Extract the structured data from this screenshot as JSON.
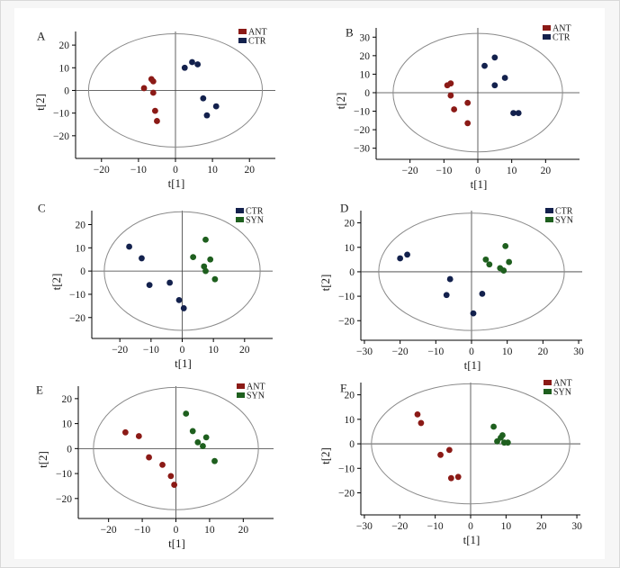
{
  "colors": {
    "ANT": "#8b1a16",
    "CTR": "#13214d",
    "SYN": "#1e5f1e",
    "ellipse": "#8a8a8a",
    "axis": "#000000"
  },
  "chart_data": [
    {
      "panel_label": "A",
      "type": "scatter",
      "xlabel": "t[1]",
      "ylabel": "t[2]",
      "xlim": [
        -27,
        27
      ],
      "ylim": [
        -30,
        26
      ],
      "xticks": [
        -20,
        -10,
        0,
        10,
        20
      ],
      "yticks": [
        20,
        10,
        0,
        -10,
        -20
      ],
      "ellipse": {
        "rx": 23.5,
        "ry": 25
      },
      "legend": "top-right",
      "series": [
        {
          "name": "ANT",
          "points": [
            [
              -6.5,
              5
            ],
            [
              -6,
              4
            ],
            [
              -8.5,
              1
            ],
            [
              -6,
              -1
            ],
            [
              -5.5,
              -9
            ],
            [
              -5,
              -13.5
            ]
          ]
        },
        {
          "name": "CTR",
          "points": [
            [
              2.5,
              10
            ],
            [
              4.5,
              12.5
            ],
            [
              6,
              11.5
            ],
            [
              7.5,
              -3.5
            ],
            [
              11,
              -7
            ],
            [
              8.5,
              -11
            ]
          ]
        }
      ]
    },
    {
      "panel_label": "B",
      "type": "scatter",
      "xlabel": "t[1]",
      "ylabel": "t[2]",
      "xlim": [
        -30,
        30
      ],
      "ylim": [
        -36,
        35
      ],
      "xticks": [
        -20,
        -10,
        0,
        10,
        20
      ],
      "yticks": [
        30,
        20,
        10,
        0,
        -10,
        -20,
        -30
      ],
      "ellipse": {
        "rx": 25,
        "ry": 32
      },
      "legend": "top-right",
      "series": [
        {
          "name": "ANT",
          "points": [
            [
              -9,
              4
            ],
            [
              -8,
              5
            ],
            [
              -8,
              -1.5
            ],
            [
              -7,
              -9
            ],
            [
              -3,
              -5.5
            ],
            [
              -3,
              -16.5
            ]
          ]
        },
        {
          "name": "CTR",
          "points": [
            [
              2,
              14.5
            ],
            [
              5,
              19
            ],
            [
              8,
              8
            ],
            [
              5,
              4
            ],
            [
              10.5,
              -11
            ],
            [
              12,
              -11
            ]
          ]
        }
      ]
    },
    {
      "panel_label": "C",
      "type": "scatter",
      "xlabel": "t[1]",
      "ylabel": "t[2]",
      "xlim": [
        -29,
        29
      ],
      "ylim": [
        -29,
        26
      ],
      "xticks": [
        -20,
        -10,
        0,
        10,
        20
      ],
      "yticks": [
        20,
        10,
        0,
        -10,
        -20
      ],
      "ellipse": {
        "rx": 25,
        "ry": 25.5
      },
      "legend": "top-right",
      "series": [
        {
          "name": "CTR",
          "points": [
            [
              -17,
              10.5
            ],
            [
              -13,
              5.5
            ],
            [
              -10.5,
              -6
            ],
            [
              -4,
              -5
            ],
            [
              -1,
              -12.5
            ],
            [
              0.5,
              -16
            ]
          ]
        },
        {
          "name": "SYN",
          "points": [
            [
              3.5,
              6
            ],
            [
              7.5,
              13.5
            ],
            [
              9,
              5
            ],
            [
              7,
              2
            ],
            [
              7.5,
              0
            ],
            [
              10.5,
              -3.5
            ]
          ]
        }
      ]
    },
    {
      "panel_label": "D",
      "type": "scatter",
      "xlabel": "t[1]",
      "ylabel": "t[2]",
      "xlim": [
        -31,
        31
      ],
      "ylim": [
        -28,
        25
      ],
      "xticks": [
        -30,
        -20,
        -10,
        0,
        10,
        20,
        30
      ],
      "yticks": [
        20,
        10,
        0,
        -10,
        -20
      ],
      "ellipse": {
        "rx": 26,
        "ry": 24
      },
      "legend": "top-right",
      "series": [
        {
          "name": "CTR",
          "points": [
            [
              -20,
              5.5
            ],
            [
              -18,
              7
            ],
            [
              -6,
              -3
            ],
            [
              -7,
              -9.5
            ],
            [
              3,
              -9
            ],
            [
              0.5,
              -17
            ]
          ]
        },
        {
          "name": "SYN",
          "points": [
            [
              4,
              5
            ],
            [
              5,
              3
            ],
            [
              8,
              1.5
            ],
            [
              9,
              0.5
            ],
            [
              9.5,
              10.5
            ],
            [
              10.5,
              4
            ]
          ]
        }
      ]
    },
    {
      "panel_label": "E",
      "type": "scatter",
      "xlabel": "t[1]",
      "ylabel": "t[2]",
      "xlim": [
        -29,
        29
      ],
      "ylim": [
        -28,
        25
      ],
      "xticks": [
        -20,
        -10,
        0,
        10,
        20
      ],
      "yticks": [
        20,
        10,
        0,
        -10,
        -20
      ],
      "ellipse": {
        "rx": 24.5,
        "ry": 24.5
      },
      "legend": "top-right",
      "series": [
        {
          "name": "ANT",
          "points": [
            [
              -15,
              6.5
            ],
            [
              -11,
              5
            ],
            [
              -8,
              -3.5
            ],
            [
              -4,
              -6.5
            ],
            [
              -1.5,
              -11
            ],
            [
              -0.5,
              -14.5
            ]
          ]
        },
        {
          "name": "SYN",
          "points": [
            [
              3,
              14
            ],
            [
              5,
              7
            ],
            [
              6.5,
              2.5
            ],
            [
              8,
              1
            ],
            [
              9,
              4.5
            ],
            [
              11.5,
              -5
            ]
          ]
        }
      ]
    },
    {
      "panel_label": "F",
      "type": "scatter",
      "xlabel": "t[1]",
      "ylabel": "t[2]",
      "xlim": [
        -31,
        31
      ],
      "ylim": [
        -29,
        25
      ],
      "xticks": [
        -30,
        -20,
        -10,
        0,
        10,
        20,
        30
      ],
      "yticks": [
        20,
        10,
        0,
        -10,
        -20
      ],
      "ellipse": {
        "rx": 28,
        "ry": 24.5
      },
      "legend": "top-right",
      "series": [
        {
          "name": "ANT",
          "points": [
            [
              -15,
              12
            ],
            [
              -14,
              8.5
            ],
            [
              -8.5,
              -4.5
            ],
            [
              -6,
              -2.5
            ],
            [
              -5.5,
              -14
            ],
            [
              -3.5,
              -13.5
            ]
          ]
        },
        {
          "name": "SYN",
          "points": [
            [
              6.5,
              7
            ],
            [
              8.5,
              2.5
            ],
            [
              9,
              3.5
            ],
            [
              7.5,
              1
            ],
            [
              9.5,
              0.5
            ],
            [
              10.5,
              0.5
            ]
          ]
        }
      ]
    }
  ]
}
